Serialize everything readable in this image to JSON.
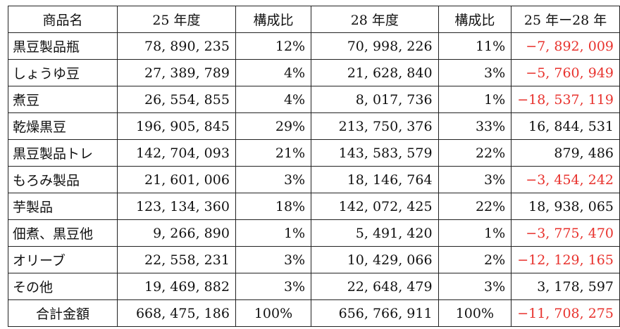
{
  "headers": [
    "商品名",
    "25 年度",
    "構成比",
    "28 年度",
    "構成比",
    "25 年ー28 年"
  ],
  "rows": [
    {
      "name": "黒豆製品瓶",
      "fy25": "78, 890, 235",
      "ratio25": "12%",
      "fy28": "70, 998, 226",
      "ratio28": "11%",
      "diff": "−7, 892, 009",
      "negative": true
    },
    {
      "name": "しょうゆ豆",
      "fy25": "27, 389, 789",
      "ratio25": "4%",
      "fy28": "21, 628, 840",
      "ratio28": "3%",
      "diff": "−5, 760, 949",
      "negative": true
    },
    {
      "name": "煮豆",
      "fy25": "26, 554, 855",
      "ratio25": "4%",
      "fy28": "8, 017, 736",
      "ratio28": "1%",
      "diff": "−18, 537, 119",
      "negative": true
    },
    {
      "name": "乾燥黒豆",
      "fy25": "196, 905, 845",
      "ratio25": "29%",
      "fy28": "213, 750, 376",
      "ratio28": "33%",
      "diff": "16, 844, 531",
      "negative": false
    },
    {
      "name": "黒豆製品トレ",
      "fy25": "142, 704, 093",
      "ratio25": "21%",
      "fy28": "143, 583, 579",
      "ratio28": "22%",
      "diff": "879, 486",
      "negative": false
    },
    {
      "name": "もろみ製品",
      "fy25": "21, 601, 006",
      "ratio25": "3%",
      "fy28": "18, 146, 764",
      "ratio28": "3%",
      "diff": "−3, 454, 242",
      "negative": true
    },
    {
      "name": "芋製品",
      "fy25": "123, 134, 360",
      "ratio25": "18%",
      "fy28": "142, 072, 425",
      "ratio28": "22%",
      "diff": "18, 938, 065",
      "negative": false
    },
    {
      "name": "佃煮、黒豆他",
      "fy25": "9, 266, 890",
      "ratio25": "1%",
      "fy28": "5, 491, 420",
      "ratio28": "1%",
      "diff": "−3, 775, 470",
      "negative": true
    },
    {
      "name": "オリーブ",
      "fy25": "22, 558, 231",
      "ratio25": "3%",
      "fy28": "10, 429, 066",
      "ratio28": "2%",
      "diff": "−12, 129, 165",
      "negative": true
    },
    {
      "name": "その他",
      "fy25": "19, 469, 882",
      "ratio25": "3%",
      "fy28": "22, 648, 479",
      "ratio28": "3%",
      "diff": "3, 178, 597",
      "negative": false
    }
  ],
  "total": {
    "name": "合計金額",
    "fy25": "668, 475, 186",
    "ratio25": "100%",
    "fy28": "656, 766, 911",
    "ratio28": "100%",
    "diff": "−11, 708, 275",
    "negative": true
  },
  "colors": {
    "negative": "#e8322d",
    "text": "#111111",
    "border": "#222222"
  }
}
